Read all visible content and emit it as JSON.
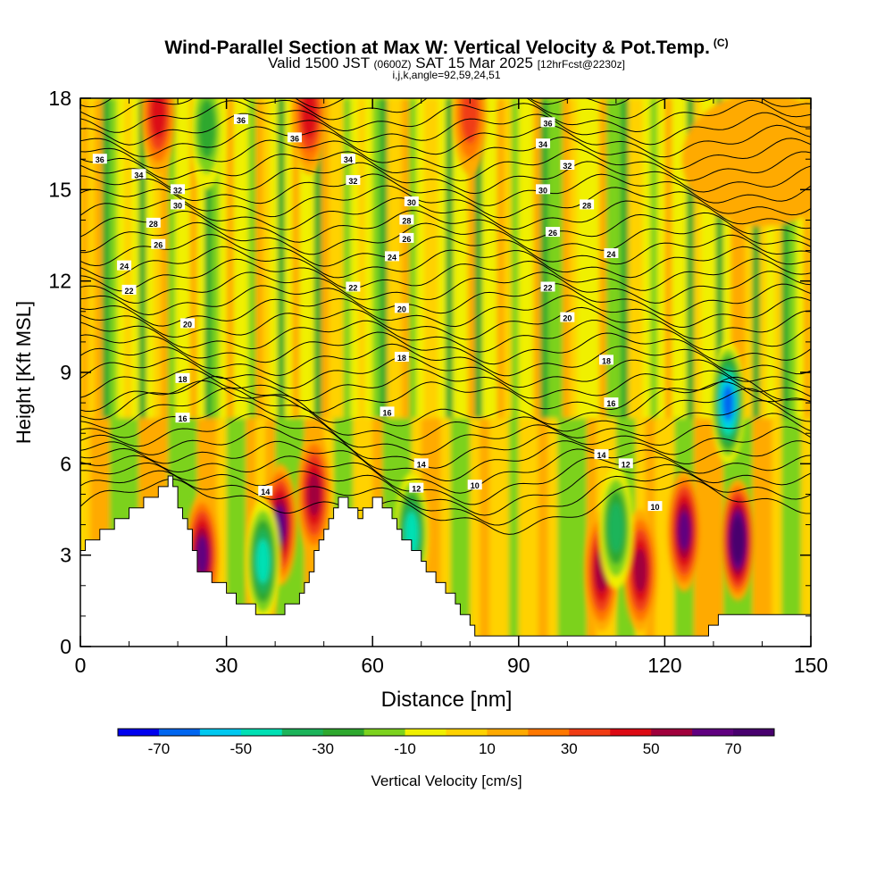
{
  "title": {
    "main": "Wind-Parallel Section at Max W: Vertical Velocity & Pot.Temp.",
    "copyright": "(C)",
    "valid_prefix": "Valid 1500 JST",
    "valid_utc": "(0600Z)",
    "valid_date": "SAT 15 Mar 2025",
    "forecast": "[12hrFcst@2230z]",
    "indices": "i,j,k,angle=92,59,24,51"
  },
  "chart_data": {
    "type": "heatmap",
    "xlabel": "Distance [nm]",
    "ylabel": "Height [Kft MSL]",
    "xlim": [
      0,
      150
    ],
    "ylim": [
      0,
      18
    ],
    "x_ticks": [
      0,
      30,
      60,
      90,
      120,
      150
    ],
    "y_ticks": [
      0,
      3,
      6,
      9,
      12,
      15,
      18
    ],
    "colorbar": {
      "label": "Vertical Velocity [cm/s]",
      "tick_labels": [
        -70,
        -50,
        -30,
        -10,
        10,
        30,
        50,
        70
      ],
      "bounds": [
        -80,
        -70,
        -60,
        -50,
        -40,
        -30,
        -20,
        -10,
        0,
        10,
        20,
        30,
        40,
        50,
        60,
        70,
        80
      ],
      "colors": [
        "#0000ee",
        "#0066f0",
        "#00c8f0",
        "#00e0b4",
        "#1cb45a",
        "#2ea82e",
        "#7cd21e",
        "#f0f000",
        "#ffd200",
        "#ffaa00",
        "#ff7800",
        "#f03c14",
        "#dc0a14",
        "#a0003c",
        "#600080",
        "#48006e"
      ]
    },
    "terrain_kft": [
      [
        0,
        3.3
      ],
      [
        5,
        3.9
      ],
      [
        10,
        4.4
      ],
      [
        15,
        5.0
      ],
      [
        18,
        5.5
      ],
      [
        21,
        4.3
      ],
      [
        24,
        2.6
      ],
      [
        27,
        2.2
      ],
      [
        30,
        1.8
      ],
      [
        33,
        1.4
      ],
      [
        36,
        1.2
      ],
      [
        40,
        1.0
      ],
      [
        44,
        1.5
      ],
      [
        47,
        2.5
      ],
      [
        50,
        4.0
      ],
      [
        53,
        4.9
      ],
      [
        57,
        4.2
      ],
      [
        61,
        4.9
      ],
      [
        65,
        3.9
      ],
      [
        68,
        3.2
      ],
      [
        72,
        2.3
      ],
      [
        76,
        1.7
      ],
      [
        79,
        0.9
      ],
      [
        81,
        0.35
      ],
      [
        90,
        0.35
      ],
      [
        100,
        0.35
      ],
      [
        110,
        0.35
      ],
      [
        120,
        0.35
      ],
      [
        128,
        0.35
      ],
      [
        131,
        1.0
      ],
      [
        140,
        1.0
      ],
      [
        150,
        1.0
      ]
    ],
    "updrafts": [
      {
        "x": 25,
        "y": 3.0,
        "w": 60
      },
      {
        "x": 41,
        "y": 4.0,
        "w": 65
      },
      {
        "x": 48,
        "y": 5.0,
        "w": 55
      },
      {
        "x": 107,
        "y": 2.5,
        "w": 55
      },
      {
        "x": 115,
        "y": 2.5,
        "w": 55
      },
      {
        "x": 124,
        "y": 3.8,
        "w": 65
      },
      {
        "x": 135,
        "y": 3.5,
        "w": 80
      },
      {
        "x": 16,
        "y": 17.5,
        "w": 40
      },
      {
        "x": 47,
        "y": 17.5,
        "w": 40
      },
      {
        "x": 80,
        "y": 17.5,
        "w": 35
      }
    ],
    "downdrafts": [
      {
        "x": 37.5,
        "y": 2.8,
        "w": -55
      },
      {
        "x": 68,
        "y": 3.7,
        "w": -55
      },
      {
        "x": 133,
        "y": 8.0,
        "w": -70
      },
      {
        "x": 110,
        "y": 3.9,
        "w": -40
      },
      {
        "x": 26,
        "y": 17.0,
        "w": -35
      }
    ],
    "theta_labels": [
      {
        "x": 33,
        "y": 17.3,
        "v": "36"
      },
      {
        "x": 44,
        "y": 16.7,
        "v": "36"
      },
      {
        "x": 55,
        "y": 16.0,
        "v": "34"
      },
      {
        "x": 56,
        "y": 15.3,
        "v": "32"
      },
      {
        "x": 4,
        "y": 16.0,
        "v": "36"
      },
      {
        "x": 12,
        "y": 15.5,
        "v": "34"
      },
      {
        "x": 20,
        "y": 15.0,
        "v": "32"
      },
      {
        "x": 20,
        "y": 14.5,
        "v": "30"
      },
      {
        "x": 15,
        "y": 13.9,
        "v": "28"
      },
      {
        "x": 16,
        "y": 13.2,
        "v": "26"
      },
      {
        "x": 9,
        "y": 12.5,
        "v": "24"
      },
      {
        "x": 10,
        "y": 11.7,
        "v": "22"
      },
      {
        "x": 22,
        "y": 10.6,
        "v": "20"
      },
      {
        "x": 21,
        "y": 8.8,
        "v": "18"
      },
      {
        "x": 21,
        "y": 7.5,
        "v": "16"
      },
      {
        "x": 68,
        "y": 14.6,
        "v": "30"
      },
      {
        "x": 67,
        "y": 14.0,
        "v": "28"
      },
      {
        "x": 67,
        "y": 13.4,
        "v": "26"
      },
      {
        "x": 64,
        "y": 12.8,
        "v": "24"
      },
      {
        "x": 56,
        "y": 11.8,
        "v": "22"
      },
      {
        "x": 66,
        "y": 11.1,
        "v": "20"
      },
      {
        "x": 66,
        "y": 9.5,
        "v": "18"
      },
      {
        "x": 63,
        "y": 7.7,
        "v": "16"
      },
      {
        "x": 70,
        "y": 6.0,
        "v": "14"
      },
      {
        "x": 69,
        "y": 5.2,
        "v": "12"
      },
      {
        "x": 81,
        "y": 5.3,
        "v": "10"
      },
      {
        "x": 38,
        "y": 5.1,
        "v": "14"
      },
      {
        "x": 96,
        "y": 17.2,
        "v": "36"
      },
      {
        "x": 95,
        "y": 16.5,
        "v": "34"
      },
      {
        "x": 100,
        "y": 15.8,
        "v": "32"
      },
      {
        "x": 95,
        "y": 15.0,
        "v": "30"
      },
      {
        "x": 104,
        "y": 14.5,
        "v": "28"
      },
      {
        "x": 97,
        "y": 13.6,
        "v": "26"
      },
      {
        "x": 109,
        "y": 12.9,
        "v": "24"
      },
      {
        "x": 96,
        "y": 11.8,
        "v": "22"
      },
      {
        "x": 100,
        "y": 10.8,
        "v": "20"
      },
      {
        "x": 108,
        "y": 9.4,
        "v": "18"
      },
      {
        "x": 109,
        "y": 8.0,
        "v": "16"
      },
      {
        "x": 107,
        "y": 6.3,
        "v": "14"
      },
      {
        "x": 112,
        "y": 6.0,
        "v": "12"
      },
      {
        "x": 118,
        "y": 4.6,
        "v": "10"
      }
    ]
  }
}
